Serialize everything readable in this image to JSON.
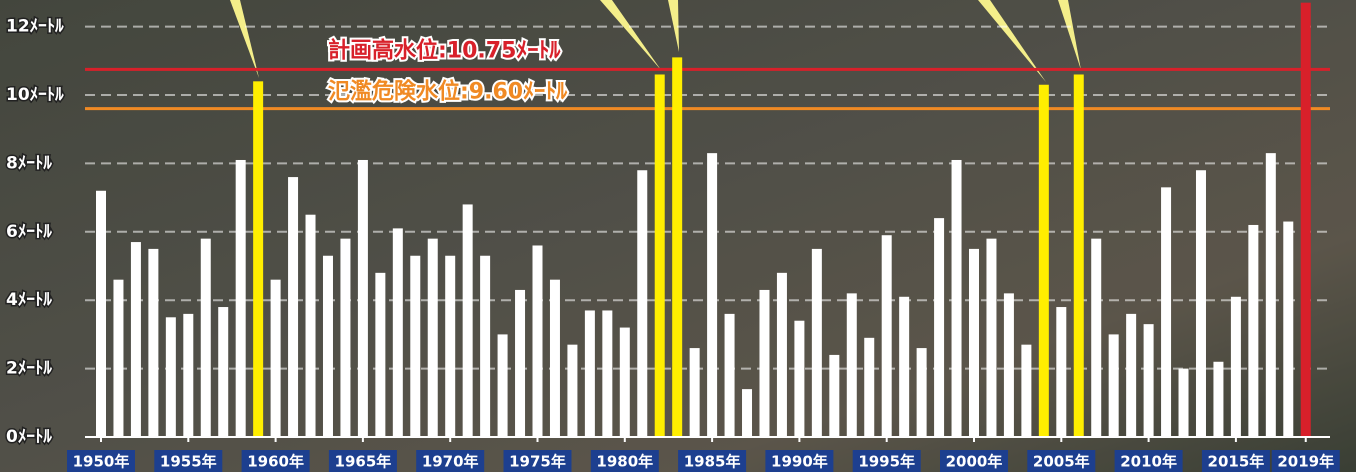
{
  "chart_data": {
    "type": "bar",
    "categories": [
      "1950年",
      null,
      null,
      null,
      null,
      "1955年",
      null,
      null,
      null,
      null,
      "1960年",
      null,
      null,
      null,
      null,
      "1965年",
      null,
      null,
      null,
      null,
      "1970年",
      null,
      null,
      null,
      null,
      "1975年",
      null,
      null,
      null,
      null,
      "1980年",
      null,
      null,
      null,
      null,
      "1985年",
      null,
      null,
      null,
      null,
      "1990年",
      null,
      null,
      null,
      null,
      "1995年",
      null,
      null,
      null,
      null,
      "2000年",
      null,
      null,
      null,
      null,
      "2005年",
      null,
      null,
      null,
      null,
      "2010年",
      null,
      null,
      null,
      null,
      "2015年",
      null,
      null,
      null,
      "2019年"
    ],
    "values": [
      7.2,
      4.6,
      5.7,
      5.5,
      3.5,
      3.6,
      5.8,
      3.8,
      8.1,
      10.4,
      4.6,
      7.6,
      6.5,
      5.3,
      5.8,
      8.1,
      4.8,
      6.1,
      5.3,
      5.8,
      5.3,
      6.8,
      5.3,
      3.0,
      4.3,
      5.6,
      4.6,
      2.7,
      3.7,
      3.7,
      3.2,
      7.8,
      10.6,
      11.1,
      2.6,
      8.3,
      3.6,
      1.4,
      4.3,
      4.8,
      3.4,
      5.5,
      2.4,
      4.2,
      2.9,
      5.9,
      4.1,
      2.6,
      6.4,
      8.1,
      5.5,
      5.8,
      4.2,
      2.7,
      10.3,
      3.8,
      10.6,
      5.8,
      3.0,
      3.6,
      3.3,
      7.3,
      2.0,
      7.8,
      2.2,
      4.1,
      6.2,
      8.3,
      6.3,
      12.7
    ],
    "colors": [
      "#ffffff",
      "#ffffff",
      "#ffffff",
      "#ffffff",
      "#ffffff",
      "#ffffff",
      "#ffffff",
      "#ffffff",
      "#ffffff",
      "#ffee00",
      "#ffffff",
      "#ffffff",
      "#ffffff",
      "#ffffff",
      "#ffffff",
      "#ffffff",
      "#ffffff",
      "#ffffff",
      "#ffffff",
      "#ffffff",
      "#ffffff",
      "#ffffff",
      "#ffffff",
      "#ffffff",
      "#ffffff",
      "#ffffff",
      "#ffffff",
      "#ffffff",
      "#ffffff",
      "#ffffff",
      "#ffffff",
      "#ffffff",
      "#ffee00",
      "#ffee00",
      "#ffffff",
      "#ffffff",
      "#ffffff",
      "#ffffff",
      "#ffffff",
      "#ffffff",
      "#ffffff",
      "#ffffff",
      "#ffffff",
      "#ffffff",
      "#ffffff",
      "#ffffff",
      "#ffffff",
      "#ffffff",
      "#ffffff",
      "#ffffff",
      "#ffffff",
      "#ffffff",
      "#ffffff",
      "#ffffff",
      "#ffee00",
      "#ffffff",
      "#ffee00",
      "#ffffff",
      "#ffffff",
      "#ffffff",
      "#ffffff",
      "#ffffff",
      "#ffffff",
      "#ffffff",
      "#ffffff",
      "#ffffff",
      "#ffffff",
      "#ffffff",
      "#ffffff",
      "#d8202a"
    ],
    "ylim": [
      0,
      12.78
    ],
    "yticks": [
      {
        "value": 0,
        "label": "0ﾒｰﾄﾙ"
      },
      {
        "value": 2,
        "label": "2ﾒｰﾄﾙ"
      },
      {
        "value": 4,
        "label": "4ﾒｰﾄﾙ"
      },
      {
        "value": 6,
        "label": "6ﾒｰﾄﾙ"
      },
      {
        "value": 8,
        "label": "8ﾒｰﾄﾙ"
      },
      {
        "value": 10,
        "label": "10ﾒｰﾄﾙ"
      },
      {
        "value": 12,
        "label": "12ﾒｰﾄﾙ"
      }
    ],
    "grid": true,
    "reference_lines": [
      {
        "value": 10.75,
        "label": "計画高水位:10.75ﾒｰﾄﾙ",
        "color": "#d8202a"
      },
      {
        "value": 9.6,
        "label": "氾濫危険水位:9.60ﾒｰﾄﾙ",
        "color": "#f08a24"
      }
    ]
  }
}
